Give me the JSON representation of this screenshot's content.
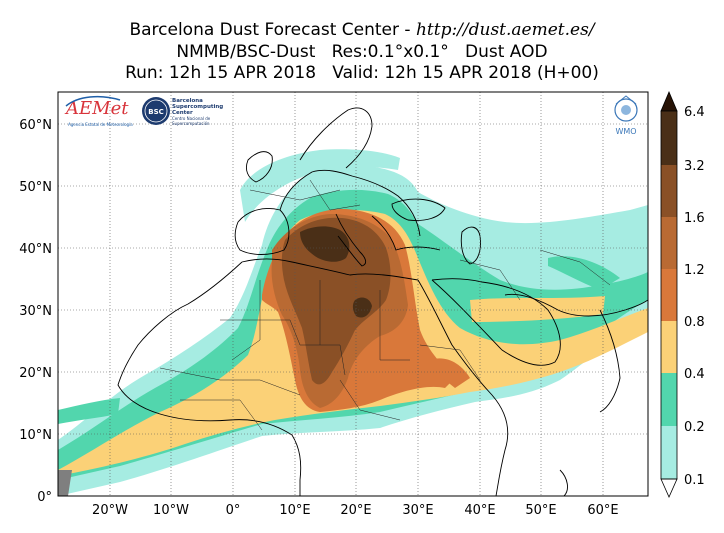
{
  "header": {
    "line1_prefix": "Barcelona Dust Forecast Center - ",
    "line1_url": "http://dust.aemet.es/",
    "line2": "NMMB/BSC-Dust   Res:0.1°x0.1°   Dust AOD",
    "line3": "Run: 12h 15 APR 2018   Valid: 12h 15 APR 2018 (H+00)"
  },
  "logos": {
    "aemet": {
      "name": "AEMet",
      "subtitle": "Agencia Estatal de Meteorología"
    },
    "bsc": {
      "badge": "BSC",
      "name": "Barcelona Supercomputing Center",
      "subtitle": "Centro Nacional de Supercomputación"
    },
    "wmo": {
      "name": "WMO"
    }
  },
  "map": {
    "lat_labels": [
      "60°N",
      "50°N",
      "40°N",
      "30°N",
      "20°N",
      "10°N",
      "0°"
    ],
    "lon_labels": [
      "20°W",
      "10°W",
      "0°",
      "10°E",
      "20°E",
      "30°E",
      "40°E",
      "50°E",
      "60°E"
    ],
    "grid": true,
    "gridline_style": "dotted"
  },
  "colorbar": {
    "levels": [
      "0.1",
      "0.2",
      "0.4",
      "0.8",
      "1.2",
      "1.6",
      "3.2",
      "6.4"
    ],
    "colors": [
      "#a6ece2",
      "#52d6ad",
      "#fbd177",
      "#d9783a",
      "#b96a33",
      "#8a5026",
      "#4a2f17"
    ],
    "extend_colors": {
      "under": "#ffffff",
      "over": "#271306"
    }
  },
  "palette": {
    "ocean": "#ffffff",
    "land": "#ffffff",
    "coast": "#000000"
  }
}
